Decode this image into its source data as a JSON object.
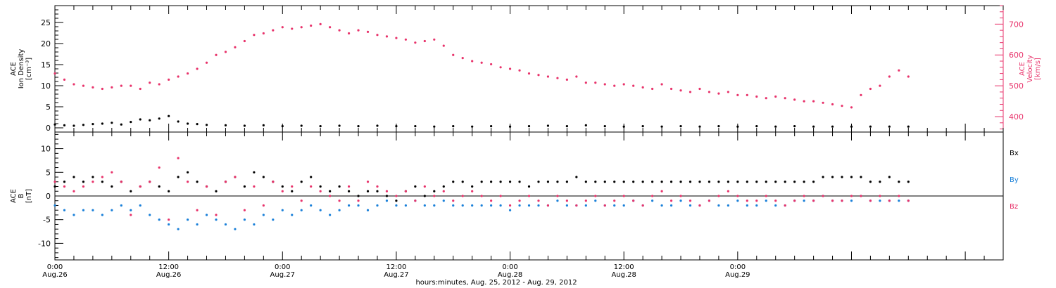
{
  "chart_data": [
    {
      "type": "scatter",
      "panel": "top",
      "ylabel_lines": [
        "ACE",
        "Ion Density",
        "[cm⁻³]"
      ],
      "ylim": [
        -1,
        29
      ],
      "yticks": [
        0,
        5,
        10,
        15,
        20,
        25
      ],
      "y2label_lines": [
        "ACE",
        "Velocity",
        "[km/s]"
      ],
      "y2lim": [
        350,
        760
      ],
      "y2ticks": [
        400,
        500,
        600,
        700
      ],
      "axis_color_right": "#e8336b",
      "series": [
        {
          "axis": "left",
          "color": "#000000",
          "x": [
            0,
            1,
            2,
            3,
            4,
            5,
            6,
            7,
            8,
            9,
            10,
            11,
            12,
            13,
            14,
            15,
            16,
            18,
            20,
            22,
            24,
            26,
            28,
            30,
            32,
            34,
            36,
            38,
            40,
            42,
            44,
            46,
            48,
            50,
            52,
            54,
            56,
            58,
            60,
            62,
            64,
            66,
            68,
            70,
            72,
            74,
            76,
            78,
            80,
            82,
            84,
            86,
            88,
            90
          ],
          "y": [
            0.8,
            0.6,
            0.5,
            0.7,
            0.9,
            1.0,
            1.2,
            0.8,
            1.4,
            2.0,
            1.8,
            2.2,
            2.8,
            1.5,
            1.0,
            0.9,
            0.7,
            0.6,
            0.5,
            0.6,
            0.4,
            0.5,
            0.4,
            0.5,
            0.4,
            0.5,
            0.4,
            0.4,
            0.3,
            0.4,
            0.3,
            0.4,
            0.3,
            0.4,
            0.5,
            0.4,
            0.6,
            0.4,
            0.3,
            0.4,
            0.3,
            0.4,
            0.3,
            0.4,
            0.3,
            0.4,
            0.3,
            0.4,
            0.3,
            0.3,
            0.3,
            0.3,
            0.3,
            0.3
          ]
        },
        {
          "axis": "right",
          "color": "#e8336b",
          "x": [
            0,
            1,
            2,
            3,
            4,
            5,
            6,
            7,
            8,
            9,
            10,
            11,
            12,
            13,
            14,
            15,
            16,
            17,
            18,
            19,
            20,
            21,
            22,
            23,
            24,
            25,
            26,
            27,
            28,
            29,
            30,
            31,
            32,
            33,
            34,
            35,
            36,
            37,
            38,
            39,
            40,
            41,
            42,
            43,
            44,
            45,
            46,
            47,
            48,
            49,
            50,
            51,
            52,
            53,
            54,
            55,
            56,
            57,
            58,
            59,
            60,
            61,
            62,
            63,
            64,
            65,
            66,
            67,
            68,
            69,
            70,
            71,
            72,
            73,
            74,
            75,
            76,
            77,
            78,
            79,
            80,
            81,
            82,
            83,
            84,
            85,
            86,
            87,
            88,
            89,
            90
          ],
          "y": [
            540,
            520,
            505,
            500,
            495,
            490,
            495,
            500,
            500,
            490,
            510,
            505,
            520,
            530,
            540,
            555,
            575,
            600,
            610,
            625,
            645,
            665,
            670,
            680,
            690,
            685,
            690,
            695,
            700,
            690,
            680,
            670,
            680,
            675,
            665,
            660,
            655,
            650,
            640,
            645,
            650,
            630,
            600,
            590,
            580,
            575,
            570,
            560,
            555,
            550,
            540,
            535,
            530,
            525,
            520,
            530,
            510,
            510,
            505,
            500,
            505,
            500,
            495,
            490,
            505,
            490,
            485,
            480,
            490,
            480,
            475,
            480,
            470,
            470,
            465,
            460,
            465,
            460,
            455,
            450,
            450,
            445,
            440,
            435,
            430,
            470,
            490,
            500,
            530,
            550,
            530
          ]
        }
      ]
    },
    {
      "type": "scatter",
      "panel": "bottom",
      "ylabel_lines": [
        "ACE",
        "B",
        "[nT]"
      ],
      "ylim": [
        -13.5,
        13.5
      ],
      "yticks": [
        -10,
        -5,
        0,
        5,
        10
      ],
      "legend_placement": "right",
      "series": [
        {
          "name": "Bx",
          "color": "#000000",
          "x": [
            0,
            1,
            2,
            3,
            4,
            5,
            6,
            7,
            8,
            9,
            10,
            11,
            12,
            13,
            14,
            15,
            16,
            17,
            18,
            19,
            20,
            21,
            22,
            23,
            24,
            25,
            26,
            27,
            28,
            29,
            30,
            31,
            32,
            33,
            34,
            35,
            36,
            37,
            38,
            39,
            40,
            41,
            42,
            43,
            44,
            45,
            46,
            47,
            48,
            49,
            50,
            51,
            52,
            53,
            54,
            55,
            56,
            57,
            58,
            59,
            60,
            61,
            62,
            63,
            64,
            65,
            66,
            67,
            68,
            69,
            70,
            71,
            72,
            73,
            74,
            75,
            76,
            77,
            78,
            79,
            80,
            81,
            82,
            83,
            84,
            85,
            86,
            87,
            88,
            89,
            90
          ],
          "y": [
            2,
            3,
            4,
            3,
            4,
            3,
            2,
            3,
            1,
            2,
            3,
            2,
            1,
            4,
            5,
            3,
            2,
            1,
            3,
            4,
            2,
            5,
            4,
            3,
            2,
            1,
            3,
            4,
            2,
            1,
            2,
            1,
            0,
            1,
            1,
            0,
            -1,
            1,
            2,
            0,
            1,
            2,
            3,
            3,
            2,
            3,
            3,
            3,
            3,
            3,
            2,
            3,
            3,
            3,
            3,
            4,
            3,
            3,
            3,
            3,
            3,
            3,
            3,
            3,
            3,
            3,
            3,
            3,
            3,
            3,
            3,
            3,
            3,
            3,
            3,
            3,
            3,
            3,
            3,
            3,
            3,
            4,
            4,
            4,
            4,
            4,
            3,
            3,
            4,
            3,
            3
          ]
        },
        {
          "name": "By",
          "color": "#1a80d9",
          "x": [
            0,
            1,
            2,
            3,
            4,
            5,
            6,
            7,
            8,
            9,
            10,
            11,
            12,
            13,
            14,
            15,
            16,
            17,
            18,
            19,
            20,
            21,
            22,
            23,
            24,
            25,
            26,
            27,
            28,
            29,
            30,
            31,
            32,
            33,
            34,
            35,
            36,
            37,
            38,
            39,
            40,
            41,
            42,
            43,
            44,
            45,
            46,
            47,
            48,
            49,
            50,
            51,
            52,
            53,
            54,
            55,
            56,
            57,
            58,
            59,
            60,
            61,
            62,
            63,
            64,
            65,
            66,
            67,
            68,
            69,
            70,
            71,
            72,
            73,
            74,
            75,
            76,
            77,
            78,
            79,
            80,
            81,
            82,
            83,
            84,
            85,
            86,
            87,
            88,
            89,
            90
          ],
          "y": [
            -2,
            -3,
            -4,
            -3,
            -3,
            -4,
            -3,
            -2,
            -3,
            -2,
            -4,
            -5,
            -6,
            -7,
            -5,
            -6,
            -4,
            -5,
            -6,
            -7,
            -5,
            -6,
            -4,
            -5,
            -3,
            -4,
            -3,
            -2,
            -3,
            -4,
            -3,
            -2,
            -2,
            -3,
            -2,
            -1,
            -2,
            -2,
            -1,
            -2,
            -2,
            -1,
            -2,
            -2,
            -2,
            -2,
            -2,
            -2,
            -3,
            -2,
            -2,
            -2,
            -2,
            -1,
            -2,
            -2,
            -2,
            -1,
            -2,
            -2,
            -2,
            -1,
            -2,
            -1,
            -2,
            -2,
            -1,
            -2,
            -2,
            -1,
            -2,
            -2,
            -1,
            -2,
            -2,
            -1,
            -2,
            -2,
            -1,
            -1,
            -1,
            0,
            -1,
            -1,
            -1,
            0,
            -1,
            -1,
            -1,
            -1,
            -1
          ]
        },
        {
          "name": "Bz",
          "color": "#e8336b",
          "x": [
            0,
            1,
            2,
            3,
            4,
            5,
            6,
            7,
            8,
            9,
            10,
            11,
            12,
            13,
            14,
            15,
            16,
            17,
            18,
            19,
            20,
            21,
            22,
            23,
            24,
            25,
            26,
            27,
            28,
            29,
            30,
            31,
            32,
            33,
            34,
            35,
            36,
            37,
            38,
            39,
            40,
            41,
            42,
            43,
            44,
            45,
            46,
            47,
            48,
            49,
            50,
            51,
            52,
            53,
            54,
            55,
            56,
            57,
            58,
            59,
            60,
            61,
            62,
            63,
            64,
            65,
            66,
            67,
            68,
            69,
            70,
            71,
            72,
            73,
            74,
            75,
            76,
            77,
            78,
            79,
            80,
            81,
            82,
            83,
            84,
            85,
            86,
            87,
            88,
            89,
            90
          ],
          "y": [
            3,
            2,
            1,
            2,
            3,
            4,
            5,
            3,
            -4,
            2,
            3,
            6,
            -5,
            8,
            3,
            -3,
            2,
            -4,
            3,
            4,
            -3,
            2,
            -2,
            3,
            1,
            2,
            -1,
            2,
            1,
            0,
            -1,
            2,
            -1,
            3,
            2,
            1,
            0,
            1,
            -1,
            2,
            0,
            1,
            -1,
            0,
            1,
            0,
            -1,
            0,
            -2,
            -1,
            0,
            -1,
            -2,
            0,
            -1,
            -2,
            -1,
            0,
            -2,
            -1,
            0,
            -1,
            -2,
            0,
            1,
            -1,
            0,
            -1,
            -2,
            -1,
            0,
            1,
            0,
            -1,
            -1,
            0,
            -1,
            -2,
            -1,
            0,
            -1,
            0,
            -1,
            -1,
            0,
            0,
            -1,
            0,
            -1,
            0,
            -1
          ]
        }
      ]
    }
  ],
  "time_axis": {
    "xlim": [
      0,
      100
    ],
    "major_ticks": [
      {
        "x": 0,
        "time": "0:00",
        "date": "Aug.26"
      },
      {
        "x": 12,
        "time": "12:00",
        "date": "Aug.26"
      },
      {
        "x": 24,
        "time": "0:00",
        "date": "Aug.27"
      },
      {
        "x": 36,
        "time": "12:00",
        "date": "Aug.27"
      },
      {
        "x": 48,
        "time": "0:00",
        "date": "Aug.28"
      },
      {
        "x": 60,
        "time": "12:00",
        "date": "Aug.28"
      },
      {
        "x": 72,
        "time": "0:00",
        "date": "Aug.29"
      }
    ],
    "xlabel": "hours:minutes, Aug. 25, 2012 - Aug. 29, 2012"
  }
}
